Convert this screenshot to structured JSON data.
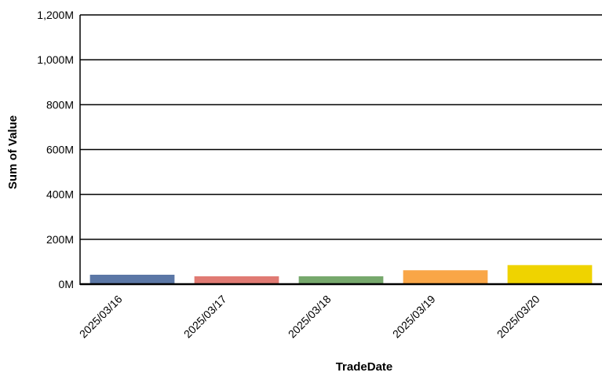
{
  "chart_data": {
    "type": "bar",
    "title": "",
    "xlabel": "TradeDate",
    "ylabel": "Sum of Value",
    "categories": [
      "2025/03/16",
      "2025/03/17",
      "2025/03/18",
      "2025/03/19",
      "2025/03/20"
    ],
    "values": [
      42000000,
      35000000,
      35000000,
      62000000,
      85000000
    ],
    "ylim": [
      0,
      1200000000
    ],
    "yticks": [
      0,
      200000000,
      400000000,
      600000000,
      800000000,
      1000000000,
      1200000000
    ],
    "ytick_labels": [
      "0M",
      "200M",
      "400M",
      "600M",
      "800M",
      "1,000M",
      "1,200M"
    ],
    "colors": [
      "#5b77a6",
      "#e07a73",
      "#76a86c",
      "#f9a647",
      "#efd300"
    ],
    "grid": "horizontal",
    "legend": "none"
  }
}
